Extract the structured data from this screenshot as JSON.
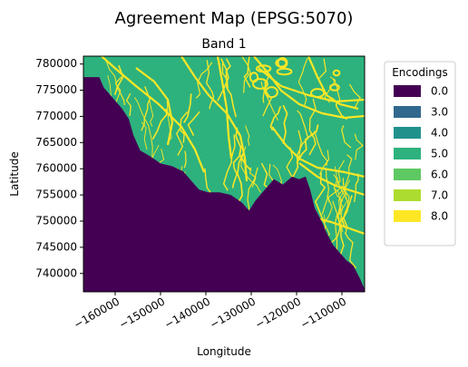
{
  "figure": {
    "title": "Agreement Map (EPSG:5070)"
  },
  "chart_data": {
    "type": "heatmap",
    "title": "Band 1",
    "xlabel": "Longitude",
    "ylabel": "Latitude",
    "xlim": [
      -167000,
      -105000
    ],
    "ylim": [
      736500,
      781500
    ],
    "xticks": [
      -160000,
      -150000,
      -140000,
      -130000,
      -120000,
      -110000
    ],
    "xtick_labels": [
      "−160000",
      "−150000",
      "−140000",
      "−130000",
      "−120000",
      "−110000"
    ],
    "yticks": [
      740000,
      745000,
      750000,
      755000,
      760000,
      765000,
      770000,
      775000,
      780000
    ],
    "ytick_labels": [
      "740000",
      "745000",
      "750000",
      "755000",
      "760000",
      "765000",
      "770000",
      "775000",
      "780000"
    ],
    "colormap": "viridis",
    "legend": {
      "title": "Encodings",
      "placement": "outside right, top",
      "entries": [
        {
          "label": "0.0",
          "color": "#440154"
        },
        {
          "label": "3.0",
          "color": "#31688e"
        },
        {
          "label": "4.0",
          "color": "#21918c"
        },
        {
          "label": "5.0",
          "color": "#2db27d"
        },
        {
          "label": "6.0",
          "color": "#5ec962"
        },
        {
          "label": "7.0",
          "color": "#addc30"
        },
        {
          "label": "8.0",
          "color": "#fde725"
        }
      ]
    },
    "regions": {
      "nodata_value": 0.0,
      "main_value": 5.0,
      "stream_value": 8.0,
      "boundary_polyline": [
        [
          -167000,
          777500
        ],
        [
          -163500,
          777500
        ],
        [
          -162500,
          775500
        ],
        [
          -160500,
          773500
        ],
        [
          -158500,
          771500
        ],
        [
          -157000,
          769500
        ],
        [
          -156000,
          766500
        ],
        [
          -154500,
          763500
        ],
        [
          -152500,
          762500
        ],
        [
          -150000,
          761000
        ],
        [
          -147500,
          760500
        ],
        [
          -145000,
          759500
        ],
        [
          -143000,
          757500
        ],
        [
          -141500,
          756000
        ],
        [
          -139500,
          755500
        ],
        [
          -137000,
          755500
        ],
        [
          -134500,
          755000
        ],
        [
          -132000,
          753500
        ],
        [
          -130500,
          752000
        ],
        [
          -129000,
          754000
        ],
        [
          -127000,
          756000
        ],
        [
          -125000,
          758000
        ],
        [
          -123000,
          757000
        ],
        [
          -121000,
          758500
        ],
        [
          -119500,
          758000
        ],
        [
          -118000,
          758500
        ],
        [
          -117000,
          756000
        ],
        [
          -116000,
          752500
        ],
        [
          -114500,
          750000
        ],
        [
          -113500,
          748000
        ],
        [
          -112000,
          745500
        ],
        [
          -110500,
          744000
        ],
        [
          -109000,
          742500
        ],
        [
          -107500,
          741500
        ],
        [
          -106000,
          739000
        ],
        [
          -105000,
          737000
        ]
      ]
    },
    "grid": false
  }
}
